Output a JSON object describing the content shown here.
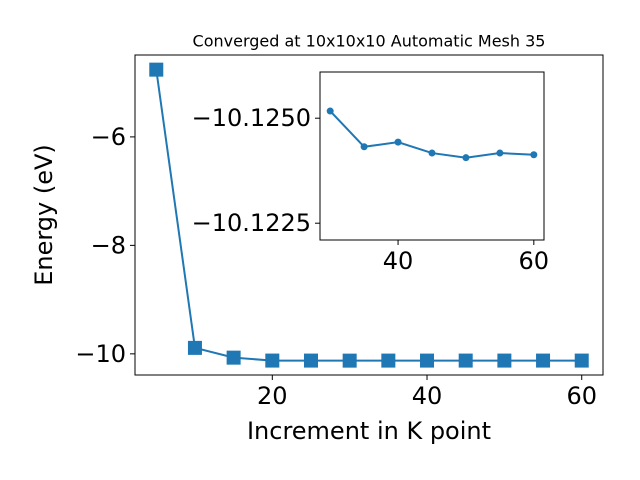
{
  "chart_data": [
    {
      "type": "line",
      "title": "Converged at 10x10x10 Automatic Mesh 35",
      "xlabel": "Increment in K point",
      "ylabel": "Energy (eV)",
      "x": [
        5,
        10,
        15,
        20,
        25,
        30,
        35,
        40,
        45,
        50,
        55,
        60
      ],
      "series": [
        {
          "name": "Energy",
          "color": "#1f77b4",
          "marker": "square",
          "values": [
            -4.76,
            -9.89,
            -10.07,
            -10.124,
            -10.1242,
            -10.12517,
            -10.12432,
            -10.12443,
            -10.12417,
            -10.12406,
            -10.12417,
            -10.12413
          ]
        }
      ],
      "xlim": [
        2.25,
        62.75
      ],
      "ylim": [
        -10.39,
        -4.49
      ],
      "xticks": [
        20,
        40,
        60
      ],
      "yticks": [
        {
          "value": -10,
          "label": "−10"
        },
        {
          "value": -8,
          "label": "−8"
        },
        {
          "value": -6,
          "label": "−6"
        }
      ]
    },
    {
      "type": "line",
      "x": [
        30,
        35,
        40,
        45,
        50,
        55,
        60
      ],
      "series": [
        {
          "name": "Energy",
          "color": "#1f77b4",
          "marker": "circle",
          "values": [
            -10.12517,
            -10.12432,
            -10.12443,
            -10.12417,
            -10.12406,
            -10.12417,
            -10.12413
          ]
        }
      ],
      "xlim": [
        28.5,
        61.5
      ],
      "ylim": [
        -10.1221,
        -10.1261
      ],
      "xticks": [
        40,
        60
      ],
      "yticks": [
        {
          "value": -10.125,
          "label": "−10.1250"
        },
        {
          "value": -10.1225,
          "label": "−10.1225"
        }
      ]
    }
  ]
}
